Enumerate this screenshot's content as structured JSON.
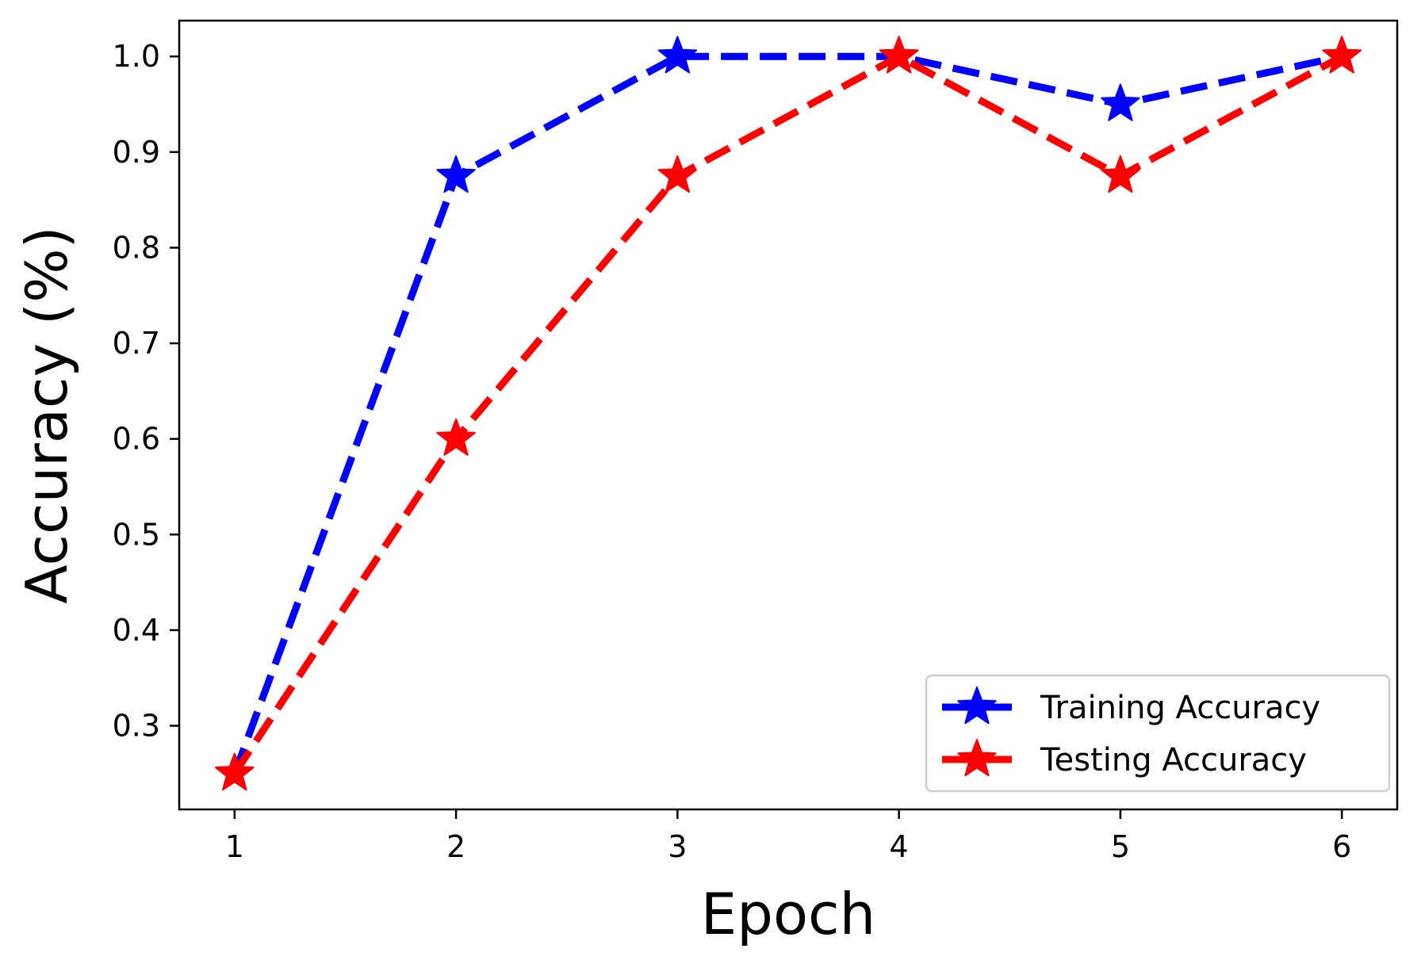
{
  "chart_data": {
    "type": "line",
    "title": "",
    "xlabel": "Epoch",
    "ylabel": "Accuracy (%)",
    "x": [
      1,
      2,
      3,
      4,
      5,
      6
    ],
    "x_tick_labels": [
      "1",
      "2",
      "3",
      "4",
      "5",
      "6"
    ],
    "y_ticks": [
      0.3,
      0.4,
      0.5,
      0.6,
      0.7,
      0.8,
      0.9,
      1.0
    ],
    "y_tick_labels": [
      "0.3",
      "0.4",
      "0.5",
      "0.6",
      "0.7",
      "0.8",
      "0.9",
      "1.0"
    ],
    "xlim": [
      0.75,
      6.25
    ],
    "ylim": [
      0.2125,
      1.0375
    ],
    "grid": false,
    "legend_position": "lower-right",
    "series": [
      {
        "name": "Training Accuracy",
        "color": "#0000ff",
        "line_style": "dashed",
        "marker": "star",
        "values": [
          0.25,
          0.875,
          1.0,
          1.0,
          0.95,
          1.0
        ]
      },
      {
        "name": "Testing Accuracy",
        "color": "#ff0000",
        "line_style": "dashed",
        "marker": "star",
        "values": [
          0.25,
          0.6,
          0.875,
          1.0,
          0.875,
          1.0
        ]
      }
    ]
  }
}
